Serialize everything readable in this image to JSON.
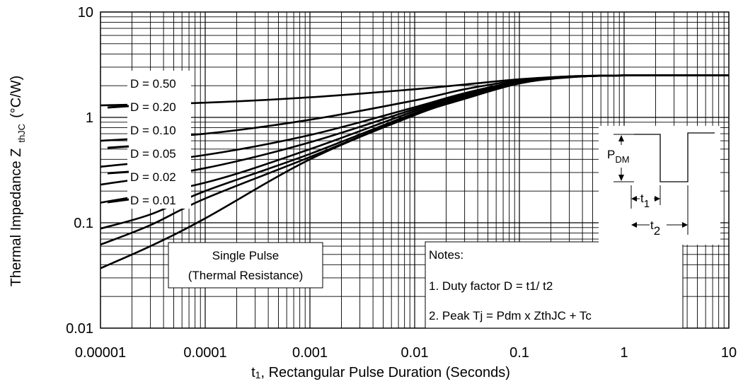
{
  "chart_data": {
    "type": "line",
    "xlabel": "t1, Rectangular Pulse Duration (Seconds)",
    "xlabel_parts": {
      "sym": "t",
      "sub": "1",
      "rest": ", Rectangular Pulse Duration (Seconds)"
    },
    "ylabel": "Thermal Impedance Z thJC (°C/W)",
    "ylabel_parts": {
      "main": "Thermal Impedance Z",
      "sub": "thJC",
      "unit": "(°C/W)"
    },
    "x_scale": "log",
    "y_scale": "log",
    "xlim": [
      1e-05,
      10
    ],
    "ylim": [
      0.01,
      10
    ],
    "x_ticks": [
      {
        "value": 1e-05,
        "label": "0.00001"
      },
      {
        "value": 0.0001,
        "label": "0.0001"
      },
      {
        "value": 0.001,
        "label": "0.001"
      },
      {
        "value": 0.01,
        "label": "0.01"
      },
      {
        "value": 0.1,
        "label": "0.1"
      },
      {
        "value": 1,
        "label": "1"
      },
      {
        "value": 10,
        "label": "10"
      }
    ],
    "y_ticks": [
      {
        "value": 0.01,
        "label": "0.01"
      },
      {
        "value": 0.1,
        "label": "0.1"
      },
      {
        "value": 1,
        "label": "1"
      },
      {
        "value": 10,
        "label": "10"
      }
    ],
    "grid": true,
    "series": [
      {
        "name": "D = 0.50",
        "x": [
          1e-05,
          0.0001,
          0.001,
          0.01,
          0.03,
          0.1,
          0.3,
          1,
          10
        ],
        "y": [
          1.3,
          1.38,
          1.55,
          1.85,
          2.05,
          2.3,
          2.45,
          2.5,
          2.5
        ]
      },
      {
        "name": "D = 0.20",
        "x": [
          1e-05,
          0.0001,
          0.001,
          0.01,
          0.03,
          0.1,
          0.3,
          1,
          10
        ],
        "y": [
          0.6,
          0.7,
          0.95,
          1.45,
          1.85,
          2.25,
          2.45,
          2.5,
          2.5
        ]
      },
      {
        "name": "D = 0.10",
        "x": [
          1e-05,
          0.0001,
          0.001,
          0.01,
          0.03,
          0.1,
          0.3,
          1,
          10
        ],
        "y": [
          0.34,
          0.44,
          0.68,
          1.25,
          1.7,
          2.2,
          2.42,
          2.5,
          2.5
        ]
      },
      {
        "name": "D = 0.05",
        "x": [
          1e-05,
          0.0001,
          0.001,
          0.01,
          0.03,
          0.1,
          0.3,
          1,
          10
        ],
        "y": [
          0.23,
          0.33,
          0.58,
          1.2,
          1.65,
          2.18,
          2.42,
          2.5,
          2.5
        ]
      },
      {
        "name": "D = 0.02",
        "x": [
          1e-05,
          0.0001,
          0.001,
          0.01,
          0.03,
          0.1,
          0.3,
          1,
          10
        ],
        "y": [
          0.155,
          0.24,
          0.5,
          1.15,
          1.62,
          2.17,
          2.42,
          2.5,
          2.5
        ]
      },
      {
        "name": "D = 0.01",
        "x": [
          1e-05,
          3e-05,
          0.0001,
          0.001,
          0.01,
          0.03,
          0.1,
          0.3,
          1,
          10
        ],
        "y": [
          0.088,
          0.12,
          0.2,
          0.45,
          1.1,
          1.58,
          2.15,
          2.42,
          2.5,
          2.5
        ]
      },
      {
        "name": "",
        "x": [
          1e-05,
          3e-05,
          0.0001,
          0.001,
          0.01,
          0.03,
          0.1,
          0.3,
          1,
          10
        ],
        "y": [
          0.062,
          0.095,
          0.17,
          0.42,
          1.07,
          1.55,
          2.13,
          2.42,
          2.5,
          2.5
        ]
      },
      {
        "name": "Single Pulse",
        "x": [
          1e-05,
          3e-05,
          0.0001,
          0.001,
          0.01,
          0.03,
          0.1,
          0.3,
          1,
          10
        ],
        "y": [
          0.037,
          0.06,
          0.11,
          0.4,
          1.05,
          1.5,
          2.1,
          2.4,
          2.5,
          2.5
        ]
      }
    ],
    "curve_labels": [
      "D = 0.50",
      "D = 0.20",
      "D = 0.10",
      "D = 0.05",
      "D = 0.02",
      "D = 0.01"
    ],
    "single_pulse_label": [
      "Single Pulse",
      "(Thermal Resistance)"
    ],
    "notes": {
      "heading": "Notes:",
      "line1": "1. Duty factor D =  t1/ t2",
      "line2": "2. Peak Tj  = Pdm  x ZthJC  + Tc"
    },
    "pulse_diagram": {
      "pdm": {
        "main": "P",
        "sub": "DM"
      },
      "t1": {
        "main": "t",
        "sub": "1"
      },
      "t2": {
        "main": "t",
        "sub": "2"
      }
    }
  }
}
